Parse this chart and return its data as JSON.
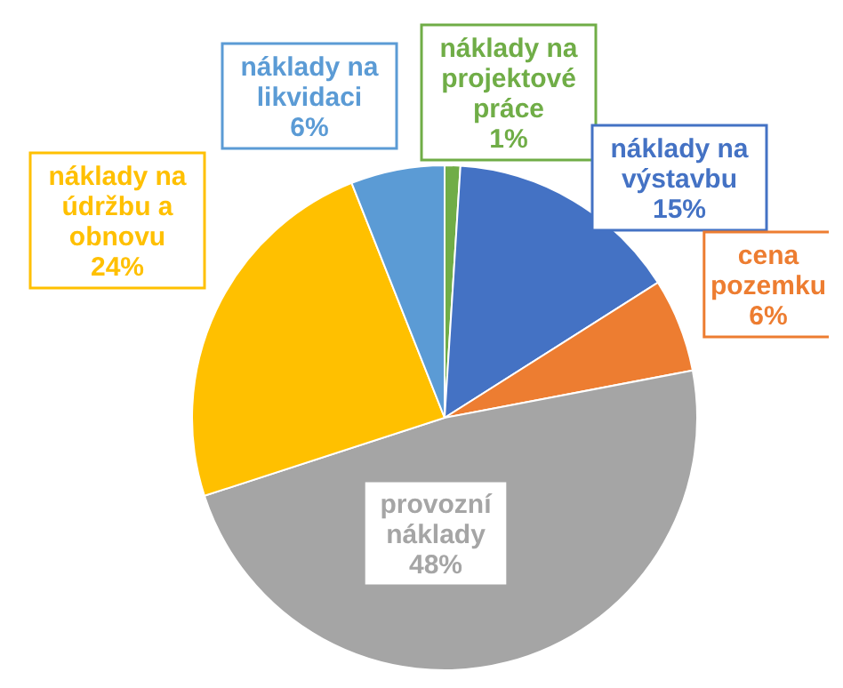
{
  "chart_data": {
    "type": "pie",
    "categories": [
      "náklady na projektové práce",
      "náklady na výstavbu",
      "cena pozemku",
      "provozní náklady",
      "náklady na údržbu a obnovu",
      "náklady na likvidaci"
    ],
    "values": [
      1,
      15,
      6,
      48,
      24,
      6
    ],
    "value_labels": [
      "1%",
      "15%",
      "6%",
      "48%",
      "24%",
      "6%"
    ],
    "colors": [
      "#70ad47",
      "#4472c4",
      "#ed7d31",
      "#a5a5a5",
      "#ffc000",
      "#5b9bd5"
    ]
  }
}
